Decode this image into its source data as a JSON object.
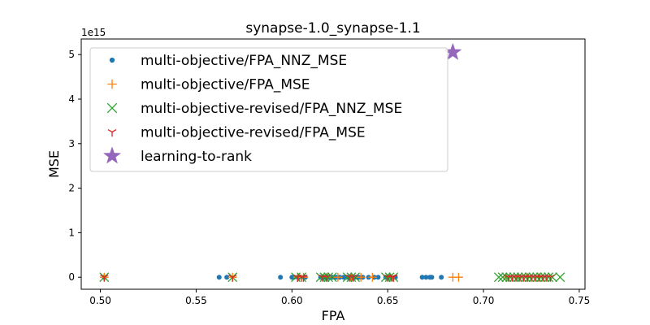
{
  "chart_data": {
    "type": "scatter",
    "title": "synapse-1.0_synapse-1.1",
    "xlabel": "FPA",
    "ylabel": "MSE",
    "y_offset_label": "1e15",
    "xlim": [
      0.49,
      0.753
    ],
    "ylim": [
      -0.27,
      5.35
    ],
    "x_ticks": [
      0.5,
      0.55,
      0.6,
      0.65,
      0.7,
      0.75
    ],
    "x_tick_labels": [
      "0.50",
      "0.55",
      "0.60",
      "0.65",
      "0.70",
      "0.75"
    ],
    "y_ticks": [
      0,
      1,
      2,
      3,
      4,
      5
    ],
    "y_tick_labels": [
      "0",
      "1",
      "2",
      "3",
      "4",
      "5"
    ],
    "legend_position": "upper left",
    "grid": false,
    "series": [
      {
        "name": "multi-objective/FPA_NNZ_MSE",
        "marker": "dot",
        "color": "#1f77b4",
        "points": [
          [
            0.502,
            0
          ],
          [
            0.562,
            0
          ],
          [
            0.566,
            0
          ],
          [
            0.594,
            0
          ],
          [
            0.6,
            0
          ],
          [
            0.601,
            0
          ],
          [
            0.603,
            0
          ],
          [
            0.607,
            0
          ],
          [
            0.615,
            0
          ],
          [
            0.617,
            0
          ],
          [
            0.619,
            0
          ],
          [
            0.621,
            0
          ],
          [
            0.623,
            0
          ],
          [
            0.625,
            0
          ],
          [
            0.627,
            0
          ],
          [
            0.629,
            0
          ],
          [
            0.631,
            0
          ],
          [
            0.633,
            0
          ],
          [
            0.635,
            0
          ],
          [
            0.637,
            0
          ],
          [
            0.64,
            0
          ],
          [
            0.643,
            0
          ],
          [
            0.645,
            0
          ],
          [
            0.649,
            0
          ],
          [
            0.651,
            0
          ],
          [
            0.654,
            0
          ],
          [
            0.668,
            0
          ],
          [
            0.67,
            0
          ],
          [
            0.672,
            0
          ],
          [
            0.673,
            0
          ],
          [
            0.678,
            0
          ]
        ]
      },
      {
        "name": "multi-objective/FPA_MSE",
        "marker": "plus",
        "color": "#ff7f0e",
        "points": [
          [
            0.502,
            0
          ],
          [
            0.569,
            0
          ],
          [
            0.603,
            0
          ],
          [
            0.606,
            0
          ],
          [
            0.618,
            0
          ],
          [
            0.624,
            0
          ],
          [
            0.631,
            0
          ],
          [
            0.636,
            0
          ],
          [
            0.642,
            0
          ],
          [
            0.651,
            0
          ],
          [
            0.684,
            0
          ],
          [
            0.687,
            0
          ],
          [
            0.712,
            0
          ],
          [
            0.718,
            0
          ],
          [
            0.723,
            0
          ],
          [
            0.729,
            0
          ]
        ]
      },
      {
        "name": "multi-objective-revised/FPA_NNZ_MSE",
        "marker": "x",
        "color": "#2ca02c",
        "points": [
          [
            0.502,
            0
          ],
          [
            0.569,
            0
          ],
          [
            0.602,
            0
          ],
          [
            0.605,
            0
          ],
          [
            0.615,
            0
          ],
          [
            0.617,
            0
          ],
          [
            0.619,
            0
          ],
          [
            0.621,
            0
          ],
          [
            0.629,
            0
          ],
          [
            0.631,
            0
          ],
          [
            0.633,
            0
          ],
          [
            0.649,
            0
          ],
          [
            0.651,
            0
          ],
          [
            0.653,
            0
          ],
          [
            0.708,
            0
          ],
          [
            0.71,
            0
          ],
          [
            0.712,
            0
          ],
          [
            0.714,
            0
          ],
          [
            0.716,
            0
          ],
          [
            0.718,
            0
          ],
          [
            0.72,
            0
          ],
          [
            0.722,
            0
          ],
          [
            0.724,
            0
          ],
          [
            0.726,
            0
          ],
          [
            0.728,
            0
          ],
          [
            0.73,
            0
          ],
          [
            0.732,
            0
          ],
          [
            0.734,
            0
          ],
          [
            0.736,
            0
          ],
          [
            0.74,
            0
          ]
        ]
      },
      {
        "name": "multi-objective-revised/FPA_MSE",
        "marker": "tri_down",
        "color": "#d62728",
        "points": [
          [
            0.502,
            0
          ],
          [
            0.569,
            0
          ],
          [
            0.603,
            0
          ],
          [
            0.605,
            0
          ],
          [
            0.606,
            0
          ],
          [
            0.616,
            0
          ],
          [
            0.618,
            0
          ],
          [
            0.63,
            0
          ],
          [
            0.632,
            0
          ],
          [
            0.65,
            0
          ],
          [
            0.652,
            0
          ],
          [
            0.653,
            0
          ],
          [
            0.713,
            0
          ],
          [
            0.715,
            0
          ],
          [
            0.717,
            0
          ],
          [
            0.719,
            0
          ],
          [
            0.721,
            0
          ],
          [
            0.723,
            0
          ],
          [
            0.725,
            0
          ],
          [
            0.727,
            0
          ],
          [
            0.729,
            0
          ],
          [
            0.731,
            0
          ],
          [
            0.733,
            0
          ],
          [
            0.735,
            0
          ]
        ]
      },
      {
        "name": "learning-to-rank",
        "marker": "star",
        "color": "#9467bd",
        "points": [
          [
            0.684,
            5.05
          ]
        ]
      }
    ]
  }
}
